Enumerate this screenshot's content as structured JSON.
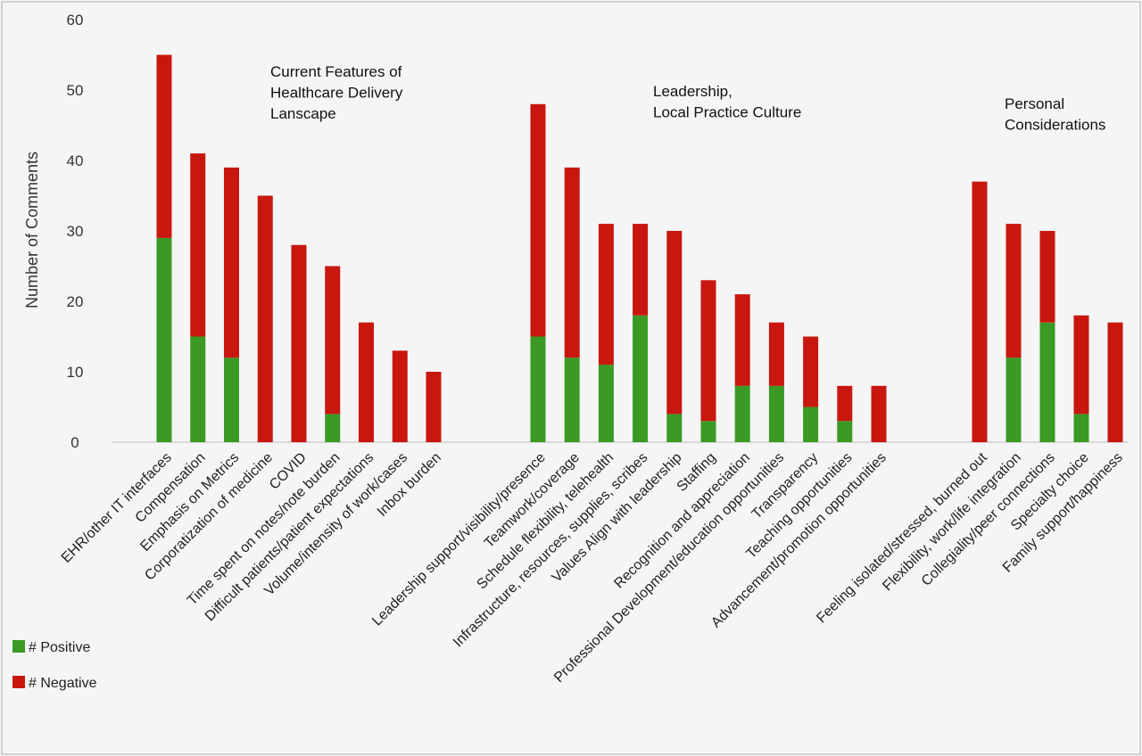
{
  "chart_data": {
    "type": "bar",
    "stacked": true,
    "ylabel": "Number of Comments",
    "ylim": [
      0,
      60
    ],
    "yticks": [
      0,
      10,
      20,
      30,
      40,
      50,
      60
    ],
    "grid": false,
    "legend_position": "bottom-left",
    "colors": {
      "positive": "#3a9a24",
      "negative": "#c8170f"
    },
    "series": [
      {
        "name": "# Positive",
        "color": "#3a9a24"
      },
      {
        "name": "# Negative",
        "color": "#c8170f"
      }
    ],
    "groups": [
      {
        "label_lines": [
          "Current Features of",
          "Healthcare Delivery",
          "Lanscape"
        ],
        "categories": [
          {
            "label": "EHR/other IT interfaces",
            "positive": 29,
            "negative": 26
          },
          {
            "label": "Compensation",
            "positive": 15,
            "negative": 26
          },
          {
            "label": "Emphasis on Metrics",
            "positive": 12,
            "negative": 27
          },
          {
            "label": "Corporatization of medicine",
            "positive": 0,
            "negative": 35
          },
          {
            "label": "COVID",
            "positive": 0,
            "negative": 28
          },
          {
            "label": "Time spent on notes/note burden",
            "positive": 4,
            "negative": 21
          },
          {
            "label": "Difficult patients/patient expectations",
            "positive": 0,
            "negative": 17
          },
          {
            "label": "Volume/intensity of work/cases",
            "positive": 0,
            "negative": 13
          },
          {
            "label": "Inbox burden",
            "positive": 0,
            "negative": 10
          }
        ]
      },
      {
        "label_lines": [
          "Leadership,",
          "Local Practice Culture"
        ],
        "categories": [
          {
            "label": "Leadership support/visibility/presence",
            "positive": 15,
            "negative": 33
          },
          {
            "label": "Teamwork/coverage",
            "positive": 12,
            "negative": 27
          },
          {
            "label": "Schedule flexibility, telehealth",
            "positive": 11,
            "negative": 20
          },
          {
            "label": "Infrastructure, resources, supplies, scribes",
            "positive": 18,
            "negative": 13
          },
          {
            "label": "Values Align with leadership",
            "positive": 4,
            "negative": 26
          },
          {
            "label": "Staffing",
            "positive": 3,
            "negative": 20
          },
          {
            "label": "Recognition and appreciation",
            "positive": 8,
            "negative": 13
          },
          {
            "label": "Professional Development/education opportunities",
            "positive": 8,
            "negative": 9
          },
          {
            "label": "Transparency",
            "positive": 5,
            "negative": 10
          },
          {
            "label": "Teaching opportunities",
            "positive": 3,
            "negative": 5
          },
          {
            "label": "Advancement/promotion opportunities",
            "positive": 0,
            "negative": 8
          }
        ]
      },
      {
        "label_lines": [
          "Personal",
          "Considerations"
        ],
        "categories": [
          {
            "label": "Feeling isolated/stressed, burned out",
            "positive": 0,
            "negative": 37
          },
          {
            "label": "Flexibility, work/life integration",
            "positive": 12,
            "negative": 19
          },
          {
            "label": "Collegiality/peer connections",
            "positive": 17,
            "negative": 13
          },
          {
            "label": "Specialty choice",
            "positive": 4,
            "negative": 14
          },
          {
            "label": "Family support/happiness",
            "positive": 0,
            "negative": 17
          }
        ]
      }
    ]
  }
}
